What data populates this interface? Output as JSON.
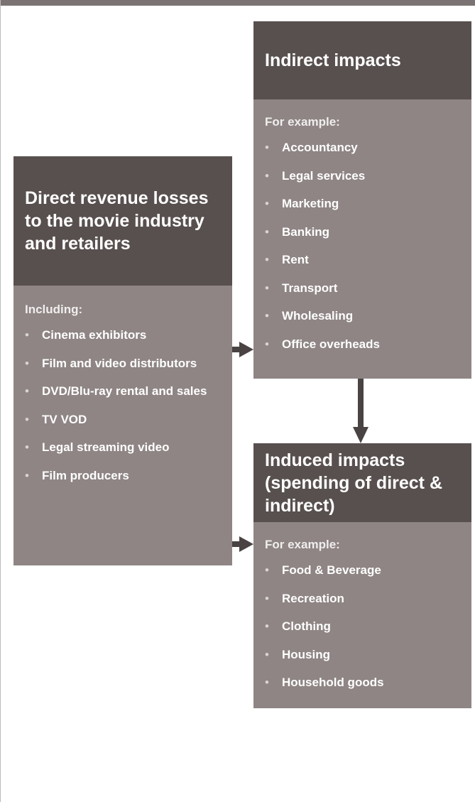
{
  "nodes": [
    {
      "title": "Direct revenue losses to the movie industry and retailers",
      "intro": "Including:",
      "items": [
        "Cinema exhibitors",
        "Film and video distributors",
        "DVD/Blu-ray rental and sales",
        "TV VOD",
        "Legal streaming video",
        "Film producers"
      ]
    },
    {
      "title": "Indirect impacts",
      "intro": "For example:",
      "items": [
        "Accountancy",
        "Legal services",
        "Marketing",
        "Banking",
        "Rent",
        "Transport",
        "Wholesaling",
        "Office overheads"
      ]
    },
    {
      "title": "Induced impacts (spending of direct & indirect)",
      "intro": "For example:",
      "items": [
        "Food & Beverage",
        "Recreation",
        "Clothing",
        "Housing",
        "Household goods"
      ]
    }
  ]
}
